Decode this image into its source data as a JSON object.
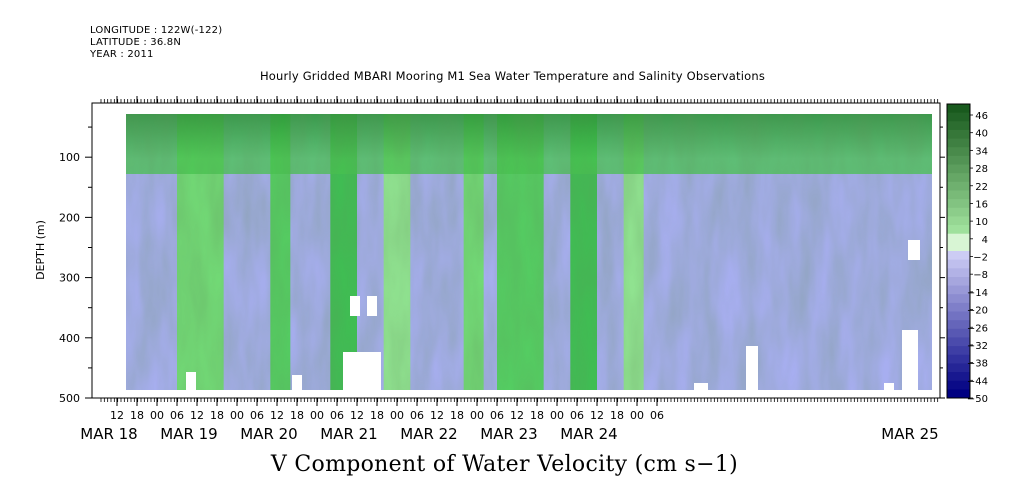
{
  "header": {
    "longitude": "LONGITUDE : 122W(-122)",
    "latitude": "LATITUDE : 36.8N",
    "year": "YEAR : 2011"
  },
  "chart_data": {
    "type": "heatmap",
    "title": "Hourly Gridded MBARI Mooring M1 Sea Water Temperature and Salinity Observations",
    "xlabel": "",
    "ylabel": "DEPTH (m)",
    "footer_title": "V Component of Water Velocity (cm s−1)",
    "ylim": [
      500,
      10
    ],
    "y_ticks": [
      "100",
      "200",
      "300",
      "400",
      "500"
    ],
    "x_hour_ticks": [
      "12",
      "18",
      "00",
      "06",
      "12",
      "18",
      "00",
      "06",
      "12",
      "18",
      "00",
      "06",
      "12",
      "18",
      "00",
      "06",
      "12",
      "18",
      "00",
      "06",
      "12",
      "18",
      "00",
      "06",
      "12",
      "18",
      "00",
      "06"
    ],
    "x_day_labels": [
      "MAR 18",
      "MAR 19",
      "MAR 20",
      "MAR 21",
      "MAR 22",
      "MAR 23",
      "MAR 24",
      "MAR 25"
    ],
    "colorbar": {
      "labels": [
        "46",
        "40",
        "34",
        "28",
        "22",
        "16",
        "10",
        "4",
        "−2",
        "−8",
        "−14",
        "−20",
        "−26",
        "−32",
        "−38",
        "−44",
        "−50"
      ],
      "range": [
        -50,
        50
      ],
      "step": 3
    },
    "description_pattern": "Alternating vertical bands of positive (green) and negative (blue) velocity; strongest positive near surface",
    "green_bands_days": [
      {
        "start": "MAR 18 06",
        "end": "MAR 18 20"
      },
      {
        "start": "MAR 19 10",
        "end": "MAR 19 16"
      },
      {
        "start": "MAR 20 04",
        "end": "MAR 20 12"
      },
      {
        "start": "MAR 20 20",
        "end": "MAR 21 04"
      },
      {
        "start": "MAR 21 20",
        "end": "MAR 22 02"
      },
      {
        "start": "MAR 22 06",
        "end": "MAR 22 20"
      },
      {
        "start": "MAR 23 04",
        "end": "MAR 23 12"
      },
      {
        "start": "MAR 23 20",
        "end": "MAR 24 02"
      }
    ]
  }
}
